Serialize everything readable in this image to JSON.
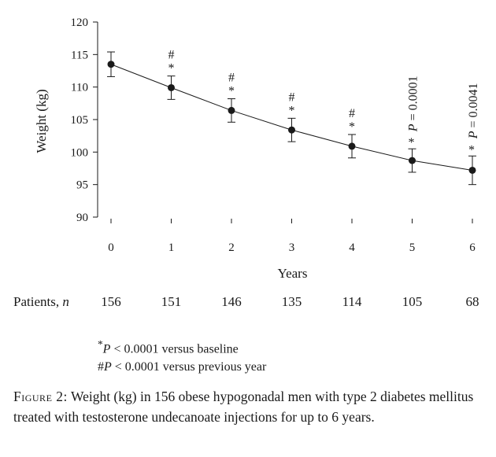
{
  "chart_data": {
    "type": "line",
    "ylabel": "Weight (kg)",
    "xlabel": "Years",
    "ylim": [
      90,
      120
    ],
    "yticks": [
      90,
      95,
      100,
      105,
      110,
      115,
      120
    ],
    "x": [
      0,
      1,
      2,
      3,
      4,
      5,
      6
    ],
    "series": [
      {
        "values": [
          113.5,
          109.9,
          106.4,
          103.4,
          100.9,
          98.7,
          97.2
        ],
        "errors": [
          1.9,
          1.8,
          1.8,
          1.8,
          1.8,
          1.8,
          2.2
        ]
      }
    ],
    "annotations": [
      {
        "x": 1,
        "markers": [
          "#",
          "*"
        ]
      },
      {
        "x": 2,
        "markers": [
          "#",
          "*"
        ]
      },
      {
        "x": 3,
        "markers": [
          "#",
          "*"
        ]
      },
      {
        "x": 4,
        "markers": [
          "#",
          "*"
        ]
      },
      {
        "x": 5,
        "markers": [
          "*"
        ],
        "pvalue": "P = 0.0001"
      },
      {
        "x": 6,
        "markers": [
          "*"
        ],
        "pvalue": "P = 0.0041"
      }
    ],
    "patients_label": "Patients, n",
    "patients_label_text": "Patients,",
    "patients_label_var": "n",
    "patients": [
      156,
      151,
      146,
      135,
      114,
      105,
      68
    ]
  },
  "footnotes": {
    "line1_mark": "*",
    "line1_p": "P",
    "line1_text": " < 0.0001 versus baseline",
    "line2_mark": "#",
    "line2_p": "P",
    "line2_text": " < 0.0001 versus previous year"
  },
  "caption": {
    "label": "Figure 2:",
    "text": " Weight (kg) in 156 obese hypogonadal men with type 2 diabetes mellitus treated with testosterone undecanoate injections for up to 6 years."
  }
}
